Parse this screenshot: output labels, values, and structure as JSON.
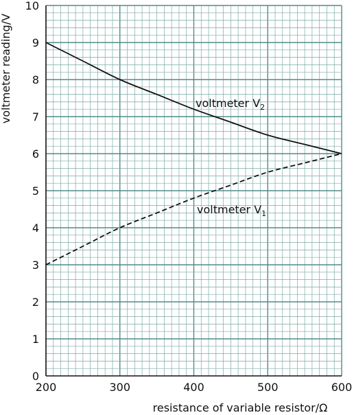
{
  "chart_data": {
    "type": "line",
    "xlabel": "resistance of variable resistor/Ω",
    "ylabel": "voltmeter reading/V",
    "xlim": [
      200,
      600
    ],
    "ylim": [
      0,
      10
    ],
    "x_ticks": [
      "200",
      "300",
      "400",
      "500",
      "600"
    ],
    "y_ticks": [
      "0",
      "1",
      "2",
      "3",
      "4",
      "5",
      "6",
      "7",
      "8",
      "9",
      "10"
    ],
    "grid": true,
    "colors": {
      "grid_minor": "#7aa9a6",
      "grid_major": "#4e8c89",
      "line": "#111111"
    },
    "series": [
      {
        "name_main": "voltmeter V",
        "name_sub": "2",
        "style": "solid",
        "x": [
          200,
          250,
          300,
          350,
          400,
          450,
          500,
          550,
          600
        ],
        "y": [
          9.0,
          8.5,
          8.0,
          7.6,
          7.2,
          6.85,
          6.5,
          6.25,
          6.0
        ]
      },
      {
        "name_main": "voltmeter V",
        "name_sub": "1",
        "style": "dashed",
        "x": [
          200,
          250,
          300,
          350,
          400,
          450,
          500,
          550,
          600
        ],
        "y": [
          3.0,
          3.5,
          4.0,
          4.4,
          4.8,
          5.15,
          5.5,
          5.75,
          6.0
        ]
      }
    ]
  }
}
